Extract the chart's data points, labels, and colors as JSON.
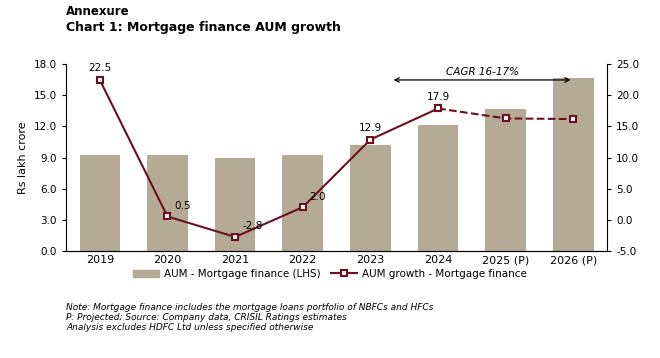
{
  "title_line1": "Annexure",
  "title_line2": "Chart 1: Mortgage finance AUM growth",
  "years": [
    "2019",
    "2020",
    "2021",
    "2022",
    "2023",
    "2024",
    "2025 (P)",
    "2026 (P)"
  ],
  "aum_values": [
    9.2,
    9.2,
    9.0,
    9.2,
    10.2,
    12.1,
    13.7,
    16.7
  ],
  "growth_values": [
    22.5,
    0.5,
    -2.8,
    2.0,
    12.9,
    17.9,
    16.3,
    16.2
  ],
  "bar_color": "#b5aa96",
  "line_color": "#6b1020",
  "lhs_ylim": [
    0.0,
    18.0
  ],
  "lhs_yticks": [
    0.0,
    3.0,
    6.0,
    9.0,
    12.0,
    15.0,
    18.0
  ],
  "rhs_ylim": [
    -5.0,
    25.0
  ],
  "rhs_yticks": [
    -5.0,
    0.0,
    5.0,
    10.0,
    15.0,
    20.0,
    25.0
  ],
  "ylabel": "Rs lakh crore",
  "cagr_text": "CAGR 16-17%",
  "note_line1": "Note: Mortgage finance includes the mortgage loans portfolio of NBFCs and HFCs",
  "note_line2": "P: Projected; Source: Company data, CRISIL Ratings estimates",
  "note_line3": "Analysis excludes HDFC Ltd unless specified otherwise",
  "legend_bar_label": "AUM - Mortgage finance (LHS)",
  "legend_line_label": "AUM growth - Mortgage finance",
  "data_labels": [
    "22.5",
    "0.5",
    "-2.8",
    "2.0",
    "12.9",
    "17.9",
    "",
    ""
  ],
  "background_color": "#ffffff"
}
